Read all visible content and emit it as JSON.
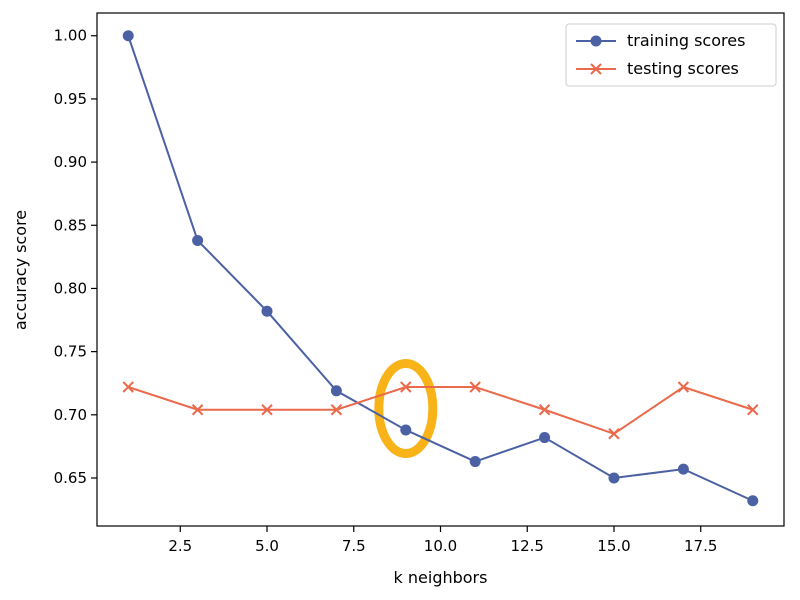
{
  "chart_data": {
    "type": "line",
    "xlabel": "k neighbors",
    "ylabel": "accuracy score",
    "xlim": [
      0.1,
      19.9
    ],
    "ylim": [
      0.612,
      1.018
    ],
    "xticks": [
      2.5,
      5.0,
      7.5,
      10.0,
      12.5,
      15.0,
      17.5
    ],
    "xtick_labels": [
      "2.5",
      "5.0",
      "7.5",
      "10.0",
      "12.5",
      "15.0",
      "17.5"
    ],
    "yticks": [
      0.65,
      0.7,
      0.75,
      0.8,
      0.85,
      0.9,
      0.95,
      1.0
    ],
    "ytick_labels": [
      "0.65",
      "0.70",
      "0.75",
      "0.80",
      "0.85",
      "0.90",
      "0.95",
      "1.00"
    ],
    "grid": false,
    "legend": {
      "position": "top-right"
    },
    "x": [
      1,
      3,
      5,
      7,
      9,
      11,
      13,
      15,
      17,
      19
    ],
    "series": [
      {
        "name": "training scores",
        "color": "#4c61a3",
        "marker": "circle",
        "values": [
          1.0,
          0.838,
          0.782,
          0.719,
          0.688,
          0.663,
          0.682,
          0.65,
          0.657,
          0.632
        ]
      },
      {
        "name": "testing scores",
        "color": "#ea6a4b",
        "marker": "x",
        "values": [
          0.722,
          0.704,
          0.704,
          0.704,
          0.722,
          0.722,
          0.704,
          0.685,
          0.722,
          0.704
        ]
      }
    ],
    "annotation": {
      "shape": "ellipse",
      "color": "#f8b318",
      "center_x": 9.0,
      "center_y": 0.705
    }
  }
}
